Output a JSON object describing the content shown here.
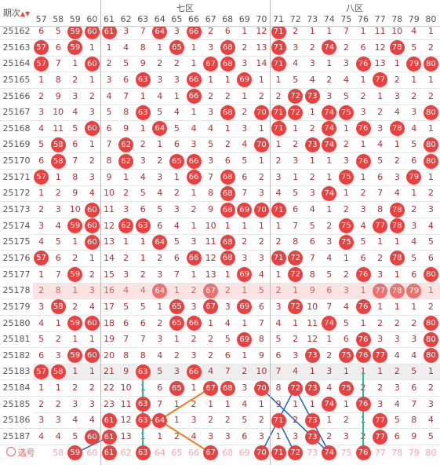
{
  "header": {
    "period_label": "期次",
    "groups": [
      {
        "label": "七区",
        "from": 61,
        "to": 70
      },
      {
        "label": "八区",
        "from": 71,
        "to": 80
      }
    ],
    "columns": [
      57,
      58,
      59,
      60,
      61,
      62,
      63,
      64,
      65,
      66,
      67,
      68,
      69,
      70,
      71,
      72,
      73,
      74,
      75,
      76,
      77,
      78,
      79,
      80
    ]
  },
  "rows": [
    {
      "period": "25162",
      "cells": [
        6,
        5,
        59,
        60,
        61,
        3,
        7,
        64,
        3,
        66,
        2,
        6,
        1,
        12,
        71,
        2,
        1,
        1,
        7,
        1,
        11,
        10,
        4,
        1
      ]
    },
    {
      "period": "25163",
      "cells": [
        57,
        6,
        59,
        1,
        1,
        4,
        8,
        1,
        65,
        1,
        3,
        68,
        2,
        13,
        71,
        3,
        2,
        74,
        2,
        6,
        12,
        78,
        5,
        2
      ]
    },
    {
      "period": "25164",
      "cells": [
        57,
        7,
        1,
        60,
        2,
        5,
        9,
        2,
        2,
        1,
        67,
        68,
        3,
        14,
        71,
        4,
        3,
        1,
        3,
        76,
        13,
        1,
        79,
        80
      ]
    },
    {
      "period": "25165",
      "cells": [
        1,
        8,
        2,
        1,
        3,
        6,
        63,
        3,
        3,
        66,
        1,
        1,
        69,
        1,
        1,
        5,
        4,
        2,
        4,
        1,
        77,
        2,
        1,
        1
      ]
    },
    {
      "period": "25166",
      "cells": [
        2,
        9,
        3,
        2,
        4,
        7,
        1,
        4,
        1,
        66,
        2,
        2,
        1,
        2,
        2,
        72,
        73,
        3,
        5,
        2,
        1,
        3,
        2,
        2
      ]
    },
    {
      "period": "25167",
      "cells": [
        3,
        10,
        4,
        3,
        5,
        8,
        63,
        5,
        4,
        1,
        3,
        68,
        2,
        70,
        71,
        72,
        1,
        74,
        75,
        3,
        2,
        4,
        3,
        80
      ]
    },
    {
      "period": "25168",
      "cells": [
        4,
        11,
        5,
        60,
        6,
        9,
        1,
        64,
        5,
        4,
        4,
        1,
        3,
        1,
        71,
        1,
        2,
        74,
        1,
        76,
        3,
        78,
        4,
        1
      ]
    },
    {
      "period": "25169",
      "cells": [
        5,
        58,
        6,
        1,
        7,
        62,
        2,
        1,
        6,
        3,
        5,
        2,
        4,
        70,
        1,
        2,
        73,
        74,
        2,
        1,
        4,
        1,
        5,
        80
      ]
    },
    {
      "period": "25170",
      "cells": [
        6,
        58,
        7,
        2,
        8,
        62,
        3,
        2,
        65,
        66,
        3,
        6,
        5,
        1,
        2,
        3,
        1,
        1,
        3,
        76,
        5,
        2,
        6,
        80
      ]
    },
    {
      "period": "25171",
      "cells": [
        57,
        1,
        8,
        3,
        9,
        1,
        4,
        3,
        1,
        66,
        7,
        68,
        6,
        2,
        3,
        1,
        2,
        1,
        75,
        1,
        6,
        3,
        79,
        1
      ]
    },
    {
      "period": "25172",
      "cells": [
        1,
        2,
        9,
        4,
        10,
        2,
        5,
        4,
        2,
        1,
        8,
        68,
        7,
        3,
        4,
        5,
        3,
        74,
        1,
        2,
        7,
        4,
        1,
        2
      ]
    },
    {
      "period": "25173",
      "cells": [
        2,
        3,
        10,
        60,
        11,
        3,
        6,
        5,
        3,
        2,
        9,
        68,
        69,
        70,
        71,
        6,
        4,
        1,
        2,
        3,
        8,
        78,
        2,
        3
      ]
    },
    {
      "period": "25174",
      "cells": [
        3,
        4,
        59,
        60,
        12,
        62,
        63,
        6,
        4,
        1,
        10,
        1,
        1,
        1,
        1,
        7,
        5,
        2,
        75,
        4,
        77,
        78,
        3,
        4
      ]
    },
    {
      "period": "25175",
      "cells": [
        4,
        5,
        1,
        60,
        13,
        1,
        1,
        64,
        5,
        3,
        11,
        68,
        2,
        2,
        2,
        8,
        6,
        3,
        75,
        5,
        1,
        1,
        4,
        5
      ]
    },
    {
      "period": "25176",
      "cells": [
        57,
        6,
        2,
        1,
        14,
        2,
        1,
        2,
        6,
        66,
        12,
        68,
        3,
        3,
        71,
        72,
        7,
        4,
        1,
        6,
        2,
        78,
        5,
        6
      ]
    },
    {
      "period": "25177",
      "cells": [
        1,
        7,
        59,
        2,
        15,
        3,
        2,
        3,
        7,
        1,
        13,
        1,
        69,
        4,
        1,
        72,
        8,
        5,
        2,
        76,
        3,
        1,
        6,
        80
      ]
    },
    {
      "period": "25178",
      "cells": [
        2,
        8,
        1,
        3,
        16,
        4,
        4,
        64,
        1,
        2,
        67,
        2,
        1,
        5,
        2,
        1,
        9,
        6,
        3,
        1,
        77,
        78,
        79,
        1
      ]
    },
    {
      "period": "25179",
      "cells": [
        3,
        58,
        2,
        4,
        17,
        5,
        5,
        1,
        65,
        3,
        67,
        3,
        69,
        6,
        3,
        72,
        10,
        7,
        4,
        76,
        1,
        1,
        1,
        2
      ]
    },
    {
      "period": "25180",
      "cells": [
        4,
        1,
        59,
        60,
        18,
        6,
        6,
        2,
        65,
        66,
        1,
        4,
        1,
        7,
        4,
        1,
        11,
        74,
        5,
        1,
        2,
        2,
        2,
        80
      ]
    },
    {
      "period": "25181",
      "cells": [
        5,
        2,
        1,
        1,
        19,
        7,
        7,
        3,
        1,
        2,
        2,
        5,
        69,
        8,
        5,
        2,
        12,
        1,
        6,
        76,
        3,
        3,
        3,
        80
      ]
    },
    {
      "period": "25182",
      "cells": [
        6,
        3,
        59,
        60,
        20,
        8,
        8,
        4,
        2,
        3,
        2,
        6,
        1,
        9,
        6,
        3,
        73,
        2,
        75,
        76,
        77,
        4,
        4,
        80
      ]
    },
    {
      "period": "25183",
      "cells": [
        57,
        58,
        1,
        1,
        21,
        9,
        63,
        5,
        3,
        66,
        4,
        7,
        2,
        10,
        7,
        4,
        1,
        3,
        1,
        1,
        1,
        2,
        5,
        1
      ]
    },
    {
      "period": "25184",
      "cells": [
        1,
        1,
        2,
        2,
        22,
        10,
        1,
        6,
        65,
        1,
        67,
        68,
        3,
        70,
        8,
        72,
        73,
        4,
        75,
        2,
        2,
        3,
        6,
        2
      ]
    },
    {
      "period": "25185",
      "cells": [
        2,
        2,
        3,
        3,
        23,
        11,
        63,
        7,
        1,
        2,
        1,
        1,
        4,
        1,
        9,
        1,
        1,
        74,
        1,
        76,
        3,
        4,
        7,
        3
      ]
    },
    {
      "period": "25186",
      "cells": [
        3,
        3,
        4,
        4,
        61,
        12,
        63,
        64,
        1,
        3,
        2,
        2,
        5,
        2,
        71,
        2,
        73,
        1,
        2,
        1,
        77,
        5,
        8,
        4
      ]
    },
    {
      "period": "25187",
      "cells": [
        4,
        4,
        5,
        60,
        61,
        13,
        1,
        1,
        2,
        4,
        3,
        3,
        6,
        3,
        1,
        3,
        73,
        2,
        3,
        2,
        77,
        6,
        9,
        5
      ]
    }
  ],
  "footer": {
    "label": "选号",
    "selected": [
      59,
      61,
      63,
      67,
      70,
      71,
      72,
      74,
      76
    ]
  }
}
